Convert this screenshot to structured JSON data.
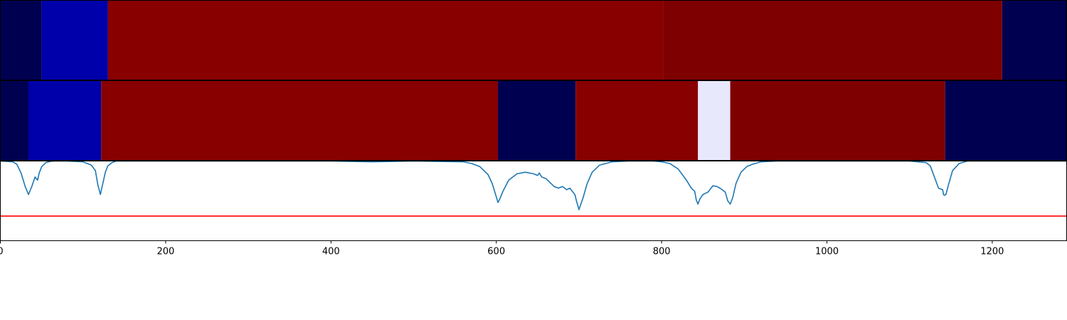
{
  "chart_data": [
    {
      "type": "heatmap",
      "panel": "top-segmentation-bar",
      "xlim": [
        0,
        1290
      ],
      "segments": [
        {
          "start": 0,
          "end": 50,
          "color": "#000050"
        },
        {
          "start": 50,
          "end": 130,
          "color": "#0000aa"
        },
        {
          "start": 130,
          "end": 802,
          "color": "#880000"
        },
        {
          "start": 802,
          "end": 1212,
          "color": "#7e0000"
        },
        {
          "start": 1212,
          "end": 1290,
          "color": "#000050"
        }
      ]
    },
    {
      "type": "heatmap",
      "panel": "middle-segmentation-bar",
      "xlim": [
        0,
        1290
      ],
      "segments": [
        {
          "start": 0,
          "end": 34,
          "color": "#000050"
        },
        {
          "start": 34,
          "end": 122,
          "color": "#0000aa"
        },
        {
          "start": 122,
          "end": 602,
          "color": "#880000"
        },
        {
          "start": 602,
          "end": 696,
          "color": "#000050"
        },
        {
          "start": 696,
          "end": 844,
          "color": "#880000"
        },
        {
          "start": 844,
          "end": 883,
          "color": "#e8e8fc"
        },
        {
          "start": 883,
          "end": 1143,
          "color": "#7e0000"
        },
        {
          "start": 1143,
          "end": 1290,
          "color": "#000050"
        }
      ]
    },
    {
      "type": "line",
      "panel": "boundary-score-plot",
      "xlim": [
        0,
        1290
      ],
      "ylim": [
        0,
        1
      ],
      "xticks": [
        "0",
        "200",
        "400",
        "600",
        "800",
        "1000",
        "1200"
      ],
      "xtick_values": [
        0,
        200,
        400,
        600,
        800,
        1000,
        1200
      ],
      "threshold": 0.31,
      "threshold_color": "#ff0000",
      "line_color": "#1f77b4",
      "series": [
        {
          "x": [
            0,
            15,
            20,
            25,
            30,
            34,
            38,
            42,
            45,
            47,
            50,
            55,
            60,
            65,
            80,
            100,
            110,
            115,
            118,
            121,
            124,
            127,
            130,
            135,
            140,
            150,
            200,
            300,
            400,
            450,
            500,
            560,
            570,
            580,
            590,
            595,
            600,
            602,
            604,
            608,
            615,
            625,
            635,
            645,
            650,
            652,
            655,
            660,
            665,
            670,
            675,
            680,
            685,
            689,
            692,
            695,
            697,
            700,
            705,
            710,
            716,
            725,
            740,
            760,
            775,
            790,
            800,
            810,
            820,
            830,
            836,
            840,
            842,
            844,
            846,
            850,
            856,
            862,
            867,
            872,
            877,
            880,
            883,
            886,
            890,
            896,
            903,
            910,
            920,
            940,
            1000,
            1100,
            1120,
            1125,
            1130,
            1135,
            1140,
            1141,
            1142,
            1144,
            1147,
            1152,
            1160,
            1170,
            1200,
            1290
          ],
          "y": [
            1.0,
            0.99,
            0.96,
            0.85,
            0.68,
            0.58,
            0.68,
            0.8,
            0.76,
            0.85,
            0.93,
            0.98,
            0.995,
            1.0,
            1.0,
            0.99,
            0.95,
            0.88,
            0.7,
            0.58,
            0.72,
            0.86,
            0.94,
            0.98,
            1.0,
            1.0,
            1.0,
            1.0,
            1.0,
            0.99,
            1.0,
            0.99,
            0.97,
            0.93,
            0.83,
            0.72,
            0.55,
            0.48,
            0.52,
            0.62,
            0.76,
            0.84,
            0.86,
            0.84,
            0.82,
            0.85,
            0.8,
            0.78,
            0.73,
            0.68,
            0.66,
            0.68,
            0.64,
            0.66,
            0.62,
            0.58,
            0.5,
            0.39,
            0.54,
            0.72,
            0.86,
            0.95,
            0.99,
            1.0,
            1.0,
            1.0,
            0.99,
            0.97,
            0.9,
            0.76,
            0.66,
            0.62,
            0.51,
            0.46,
            0.52,
            0.58,
            0.61,
            0.69,
            0.68,
            0.65,
            0.61,
            0.5,
            0.46,
            0.54,
            0.72,
            0.86,
            0.93,
            0.96,
            0.99,
            1.0,
            1.0,
            1.0,
            0.98,
            0.94,
            0.8,
            0.66,
            0.64,
            0.58,
            0.57,
            0.58,
            0.7,
            0.88,
            0.97,
            1.0,
            1.0,
            1.0
          ]
        }
      ]
    }
  ]
}
